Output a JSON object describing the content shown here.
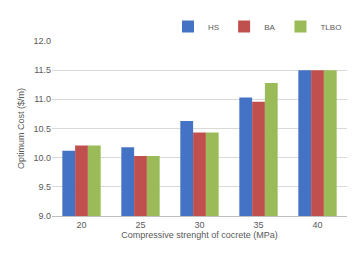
{
  "chart_data": {
    "type": "bar",
    "x_label": "Compressive strenght of cocrete (MPa)",
    "y_label": "Optimum Cost ($/m)",
    "categories": [
      "20",
      "25",
      "30",
      "35",
      "40"
    ],
    "series": [
      {
        "name": "HS",
        "color": "#4472c4",
        "values": [
          10.12,
          10.18,
          10.63,
          11.03,
          11.5
        ]
      },
      {
        "name": "BA",
        "color": "#c0504d",
        "values": [
          10.21,
          10.03,
          10.43,
          10.96,
          11.5
        ]
      },
      {
        "name": "TLBO",
        "color": "#9bbb59",
        "values": [
          10.21,
          10.03,
          10.43,
          11.28,
          11.5
        ]
      }
    ],
    "ylim": [
      9,
      12
    ],
    "yticks": [
      {
        "value": 9,
        "label": "9.0"
      },
      {
        "value": 9.5,
        "label": "9.5"
      },
      {
        "value": 10,
        "label": "10.0"
      },
      {
        "value": 10.5,
        "label": "10.5"
      },
      {
        "value": 11,
        "label": "11.0"
      },
      {
        "value": 11.5,
        "label": "11.5"
      },
      {
        "value": 12,
        "label": "12.0"
      }
    ],
    "grid": true,
    "legend": "top-right"
  }
}
